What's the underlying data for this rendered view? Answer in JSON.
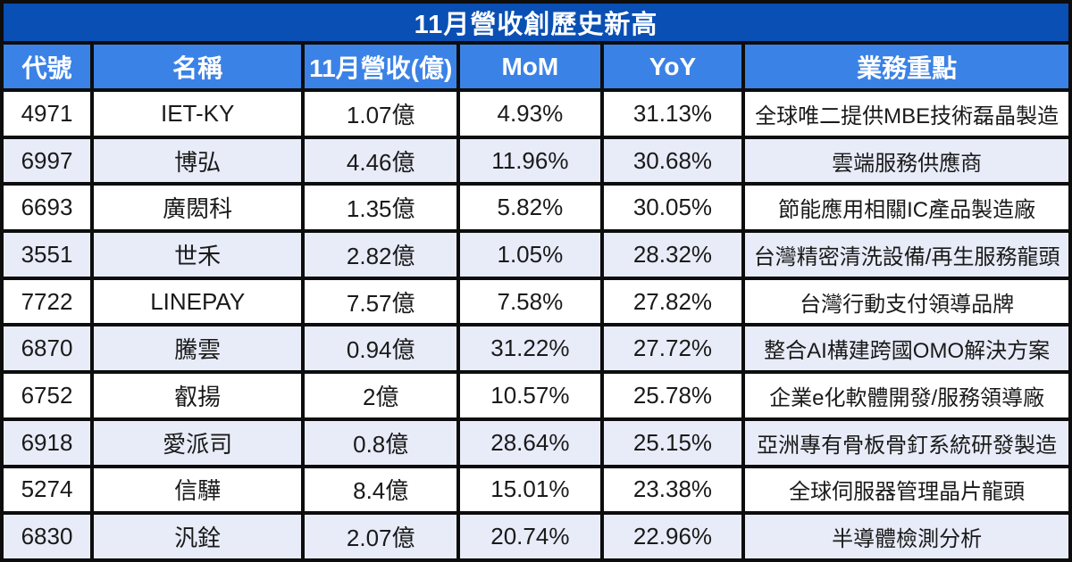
{
  "title": "11月營收創歷史新高",
  "columns": {
    "code": "代號",
    "name": "名稱",
    "revenue": "11月營收(億)",
    "mom": "MoM",
    "yoy": "YoY",
    "focus": "業務重點"
  },
  "rows": [
    {
      "code": "4971",
      "name": "IET-KY",
      "revenue": "1.07億",
      "mom": "4.93%",
      "yoy": "31.13%",
      "focus": "全球唯二提供MBE技術磊晶製造"
    },
    {
      "code": "6997",
      "name": "博弘",
      "revenue": "4.46億",
      "mom": "11.96%",
      "yoy": "30.68%",
      "focus": "雲端服務供應商"
    },
    {
      "code": "6693",
      "name": "廣閎科",
      "revenue": "1.35億",
      "mom": "5.82%",
      "yoy": "30.05%",
      "focus": "節能應用相關IC產品製造廠"
    },
    {
      "code": "3551",
      "name": "世禾",
      "revenue": "2.82億",
      "mom": "1.05%",
      "yoy": "28.32%",
      "focus": "台灣精密清洗設備/再生服務龍頭"
    },
    {
      "code": "7722",
      "name": "LINEPAY",
      "revenue": "7.57億",
      "mom": "7.58%",
      "yoy": "27.82%",
      "focus": "台灣行動支付領導品牌"
    },
    {
      "code": "6870",
      "name": "騰雲",
      "revenue": "0.94億",
      "mom": "31.22%",
      "yoy": "27.72%",
      "focus": "整合AI構建跨國OMO解決方案"
    },
    {
      "code": "6752",
      "name": "叡揚",
      "revenue": "2億",
      "mom": "10.57%",
      "yoy": "25.78%",
      "focus": "企業e化軟體開發/服務領導廠"
    },
    {
      "code": "6918",
      "name": "愛派司",
      "revenue": "0.8億",
      "mom": "28.64%",
      "yoy": "25.15%",
      "focus": "亞洲專有骨板骨釘系統研發製造"
    },
    {
      "code": "5274",
      "name": "信驊",
      "revenue": "8.4億",
      "mom": "15.01%",
      "yoy": "23.38%",
      "focus": "全球伺服器管理晶片龍頭"
    },
    {
      "code": "6830",
      "name": "汎銓",
      "revenue": "2.07億",
      "mom": "20.74%",
      "yoy": "22.96%",
      "focus": "半導體檢測分析"
    }
  ],
  "colors": {
    "title_bg": "#0a4fb4",
    "header_bg": "#3b82e6",
    "row_alt_bg": "#e8ecf8",
    "border": "#0d0d0d",
    "header_text": "#ffffff",
    "body_text": "#1a1a1a"
  }
}
